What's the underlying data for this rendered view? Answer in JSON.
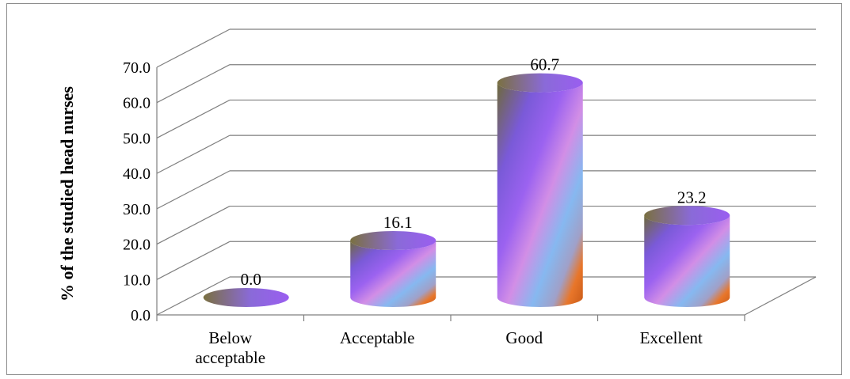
{
  "chart_data": {
    "type": "bar",
    "categories": [
      "Below acceptable",
      "Acceptable",
      "Good",
      "Excellent"
    ],
    "category_lines": [
      [
        "Below",
        "acceptable"
      ],
      [
        "Acceptable"
      ],
      [
        "Good"
      ],
      [
        "Excellent"
      ]
    ],
    "values": [
      0.0,
      16.1,
      60.7,
      23.2
    ],
    "value_labels": [
      "0.0",
      "16.1",
      "60.7",
      "23.2"
    ],
    "ylabel": "% of the studied head nurses",
    "ylim": [
      0,
      70
    ],
    "yticks": [
      "0.0",
      "10.0",
      "20.0",
      "30.0",
      "40.0",
      "50.0",
      "60.0",
      "70.0"
    ],
    "grid": true,
    "style": "3d-cylinder"
  }
}
